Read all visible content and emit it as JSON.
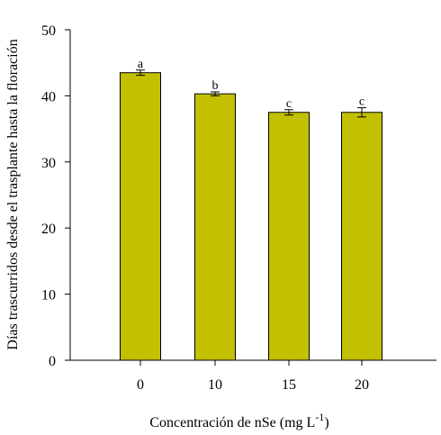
{
  "chart_data": {
    "type": "bar",
    "categories": [
      "0",
      "10",
      "15",
      "20"
    ],
    "values": [
      43.5,
      40.3,
      37.5,
      37.5
    ],
    "errors": [
      0.4,
      0.3,
      0.4,
      0.7
    ],
    "significance": [
      "a",
      "b",
      "c",
      "c"
    ],
    "xlabel": {
      "main": "Concentración de nSe (mg L",
      "sup": "-1",
      "close": ")"
    },
    "ylabel": "Días trascurridos desde el trasplante hasta la floración",
    "ylim": [
      0,
      50
    ],
    "yticks": [
      0,
      10,
      20,
      30,
      40,
      50
    ],
    "grid": false,
    "legend": "none",
    "bar_color": "#c2c000",
    "bar_edge": "#000000"
  }
}
